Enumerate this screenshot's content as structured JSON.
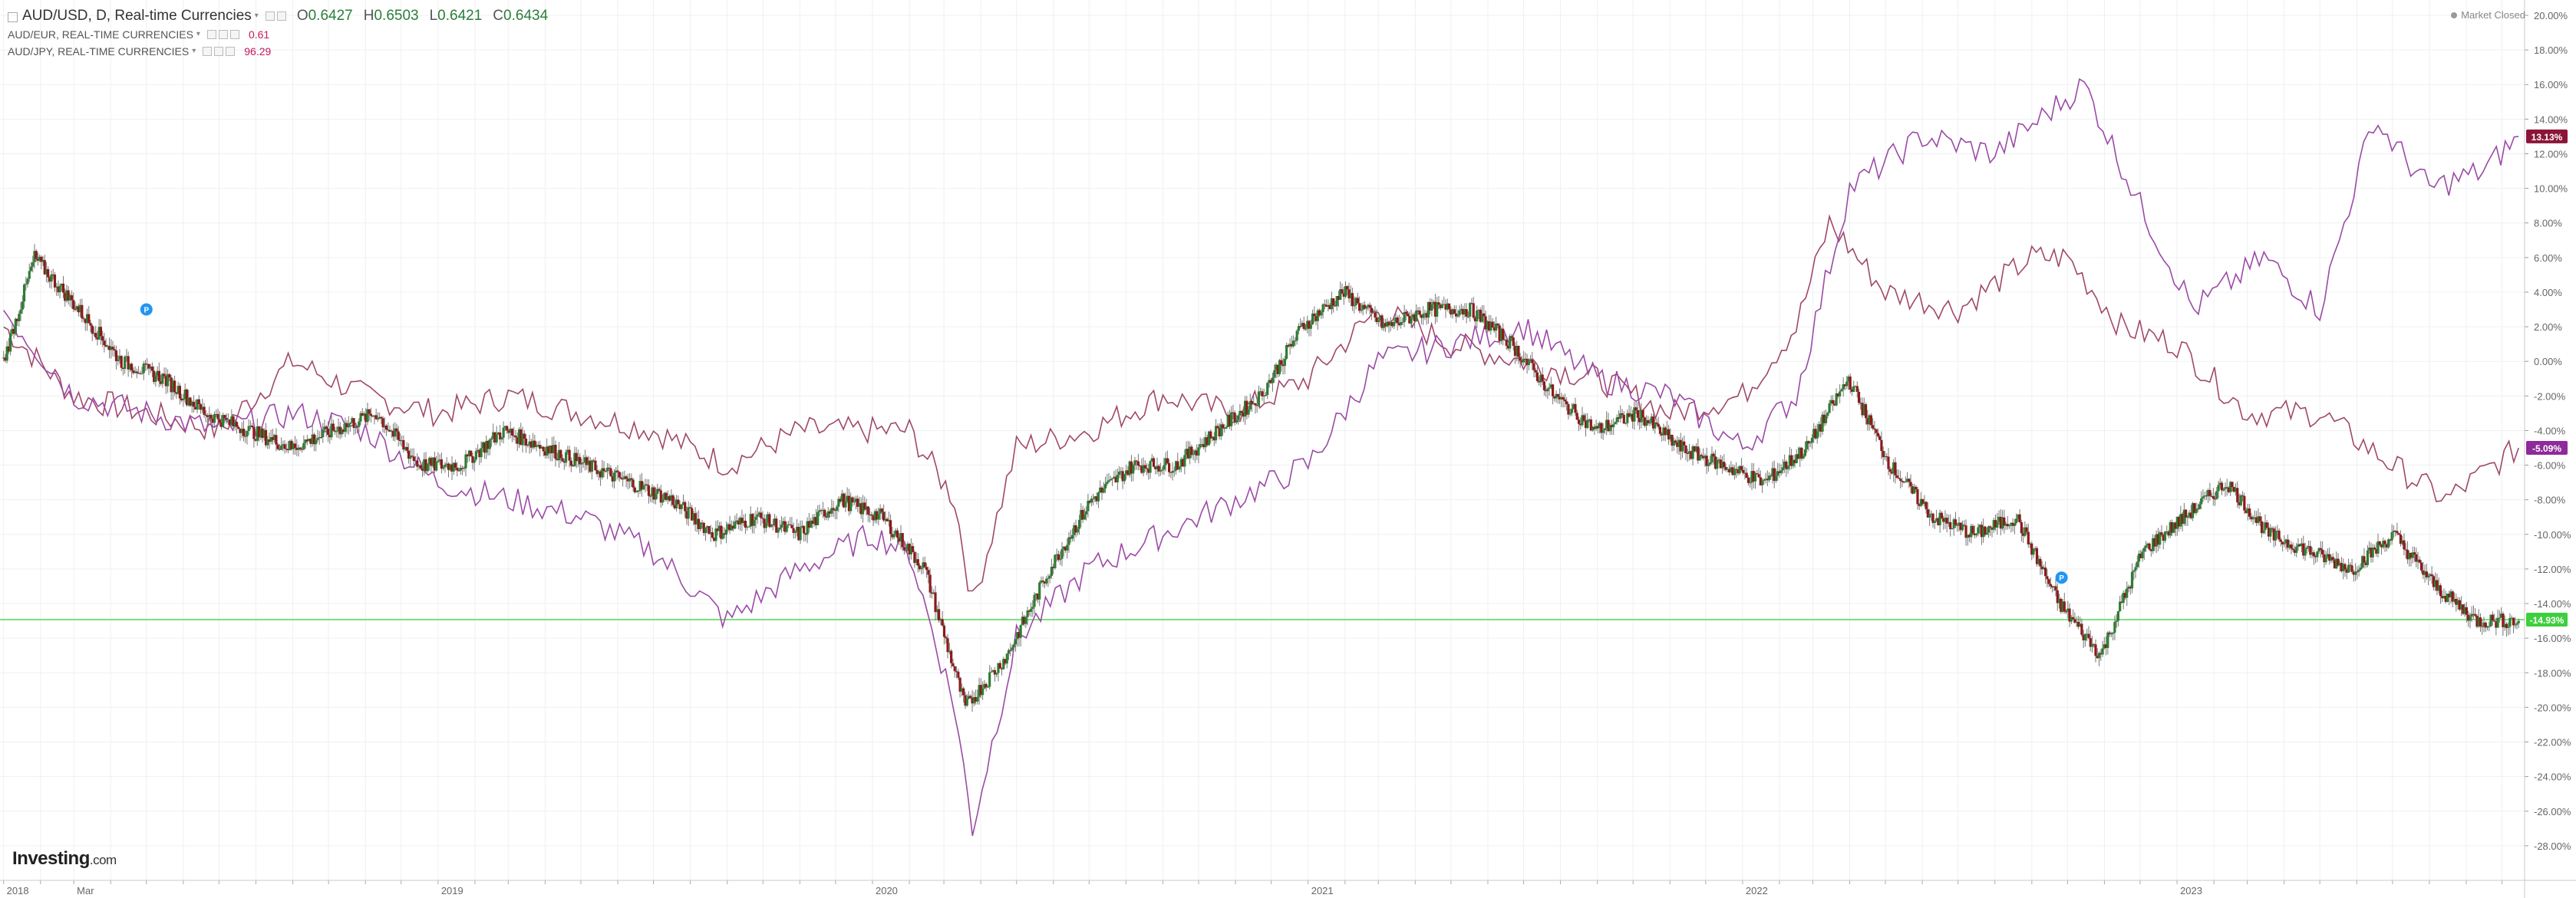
{
  "legend": {
    "main_symbol": "AUD/USD, D, Real-time Currencies",
    "ohlc": [
      {
        "label": "O",
        "value": "0.6427"
      },
      {
        "label": "H",
        "value": "0.6503"
      },
      {
        "label": "L",
        "value": "0.6421"
      },
      {
        "label": "C",
        "value": "0.6434"
      }
    ],
    "compare_series": [
      {
        "label": "AUD/EUR, REAL-TIME CURRENCIES",
        "value": "0.61",
        "color": "#c2185b"
      },
      {
        "label": "AUD/JPY, REAL-TIME CURRENCIES",
        "value": "96.29",
        "color": "#c2185b"
      }
    ]
  },
  "market_status": "Market Closed",
  "logo": {
    "brand": "Investing",
    "suffix": ".com"
  },
  "colors": {
    "audusd_up": "#2e7d32",
    "audusd_down": "#8b1a1a",
    "audeur_line": "#a0486a",
    "audjpy_line": "#9b4aa6",
    "reference_line": "#7ee07e",
    "grid": "#eef0f3",
    "axis_text": "#666666"
  },
  "chart_data": {
    "type": "line",
    "title": "AUD/USD, D, Real-time Currencies",
    "xlabel": "",
    "ylabel": "",
    "y_unit": "%",
    "ylim": [
      -30,
      20
    ],
    "x_tick_labels": [
      "2018",
      "Mar",
      "2019",
      "2020",
      "2021",
      "2022",
      "2023"
    ],
    "x_tick_dates": [
      "2018-01-01",
      "2018-03-01",
      "2019-01-01",
      "2020-01-01",
      "2021-01-01",
      "2022-01-01",
      "2023-01-01"
    ],
    "x_range": [
      "2017-12-29",
      "2023-10-20"
    ],
    "y_ticks": [
      20,
      18,
      16,
      14,
      12,
      10,
      8,
      6,
      4,
      2,
      0,
      -2,
      -4,
      -6,
      -8,
      -10,
      -12,
      -14,
      -16,
      -18,
      -20,
      -22,
      -24,
      -26,
      -28
    ],
    "y_tick_labels": [
      "20.00%",
      "18.00%",
      "16.00%",
      "14.00%",
      "12.00%",
      "10.00%",
      "8.00%",
      "6.00%",
      "4.00%",
      "2.00%",
      "0.00%",
      "-2.00%",
      "-4.00%",
      "-6.00%",
      "-8.00%",
      "-10.00%",
      "-12.00%",
      "-14.00%",
      "-16.00%",
      "-18.00%",
      "-20.00%",
      "-22.00%",
      "-24.00%",
      "-26.00%",
      "-28.00%"
    ],
    "grid": true,
    "reference_line": -14.93,
    "series": [
      {
        "name": "AUD/USD",
        "style": "candlestick",
        "last_label": "-14.93%",
        "x": [
          "2018-01-01",
          "2018-01-27",
          "2018-03-05",
          "2018-04-10",
          "2018-05-16",
          "2018-06-20",
          "2018-07-26",
          "2018-08-31",
          "2018-10-05",
          "2018-11-10",
          "2018-12-16",
          "2019-01-20",
          "2019-02-25",
          "2019-04-01",
          "2019-05-06",
          "2019-06-11",
          "2019-07-16",
          "2019-08-21",
          "2019-09-25",
          "2019-10-31",
          "2019-12-05",
          "2020-01-09",
          "2020-02-14",
          "2020-03-19",
          "2020-04-23",
          "2020-05-29",
          "2020-07-03",
          "2020-08-07",
          "2020-09-12",
          "2020-10-17",
          "2020-11-22",
          "2020-12-27",
          "2021-01-31",
          "2021-03-07",
          "2021-04-12",
          "2021-05-17",
          "2021-06-21",
          "2021-07-27",
          "2021-08-31",
          "2021-10-05",
          "2021-11-10",
          "2021-12-15",
          "2022-01-19",
          "2022-02-24",
          "2022-03-31",
          "2022-05-05",
          "2022-06-10",
          "2022-07-15",
          "2022-08-19",
          "2022-09-24",
          "2022-10-29",
          "2022-12-03",
          "2023-01-07",
          "2023-02-12",
          "2023-03-19",
          "2023-04-23",
          "2023-05-28",
          "2023-07-02",
          "2023-08-06",
          "2023-09-10",
          "2023-10-15"
        ],
        "y": [
          0,
          6,
          3,
          0,
          -1,
          -3,
          -4,
          -5,
          -4,
          -3,
          -6,
          -6,
          -4,
          -5,
          -6,
          -7,
          -8,
          -10,
          -9,
          -10,
          -8,
          -9,
          -12,
          -20,
          -17,
          -12,
          -8,
          -6,
          -6,
          -4,
          -2,
          2,
          4,
          2,
          3,
          3,
          1,
          -2,
          -4,
          -3,
          -5,
          -6,
          -7,
          -5,
          -1,
          -6,
          -9,
          -10,
          -9,
          -14,
          -17,
          -11,
          -9,
          -7,
          -10,
          -11,
          -12,
          -10,
          -13,
          -15,
          -15
        ]
      },
      {
        "name": "AUD/EUR",
        "style": "line",
        "last_label": "-5.09%",
        "x": [
          "2018-01-01",
          "2018-03-01",
          "2018-05-01",
          "2018-07-01",
          "2018-09-01",
          "2018-11-01",
          "2019-01-01",
          "2019-03-01",
          "2019-05-01",
          "2019-07-01",
          "2019-09-01",
          "2019-11-01",
          "2020-01-01",
          "2020-02-01",
          "2020-03-10",
          "2020-03-25",
          "2020-05-01",
          "2020-07-01",
          "2020-09-01",
          "2020-11-01",
          "2021-01-01",
          "2021-03-01",
          "2021-05-01",
          "2021-07-01",
          "2021-09-01",
          "2021-11-01",
          "2022-01-01",
          "2022-02-15",
          "2022-03-15",
          "2022-05-01",
          "2022-07-01",
          "2022-09-01",
          "2022-10-01",
          "2022-11-15",
          "2023-01-01",
          "2023-03-01",
          "2023-05-01",
          "2023-07-01",
          "2023-08-15",
          "2023-10-15"
        ],
        "y": [
          2,
          -2,
          -3,
          -4,
          0,
          -2,
          -3,
          -2,
          -3,
          -4,
          -6,
          -4,
          -4,
          -4,
          -8,
          -14,
          -5,
          -4,
          -2,
          -3,
          -1,
          3,
          1,
          0,
          -1,
          -3,
          -2,
          2,
          8,
          4,
          3,
          6,
          6,
          2,
          1,
          -3,
          -3,
          -6,
          -8,
          -5
        ]
      },
      {
        "name": "AUD/JPY",
        "style": "line",
        "last_label": "13.13%",
        "x": [
          "2018-01-01",
          "2018-03-01",
          "2018-05-01",
          "2018-07-01",
          "2018-09-01",
          "2018-11-01",
          "2019-01-01",
          "2019-03-01",
          "2019-05-01",
          "2019-07-01",
          "2019-09-01",
          "2019-11-01",
          "2020-01-01",
          "2020-02-01",
          "2020-03-10",
          "2020-03-25",
          "2020-05-01",
          "2020-07-01",
          "2020-09-01",
          "2020-11-01",
          "2021-01-01",
          "2021-03-01",
          "2021-05-01",
          "2021-07-01",
          "2021-09-01",
          "2021-11-01",
          "2022-01-01",
          "2022-02-15",
          "2022-04-01",
          "2022-06-01",
          "2022-08-01",
          "2022-10-15",
          "2022-12-01",
          "2023-01-15",
          "2023-03-15",
          "2023-05-01",
          "2023-06-15",
          "2023-08-01",
          "2023-09-15",
          "2023-10-15"
        ],
        "y": [
          3,
          -2,
          -3,
          -4,
          -3,
          -4,
          -7,
          -8,
          -9,
          -11,
          -15,
          -12,
          -10,
          -11,
          -20,
          -27,
          -16,
          -12,
          -10,
          -8,
          -6,
          0,
          1,
          2,
          -1,
          -2,
          -5,
          -2,
          10,
          13,
          12,
          16,
          9,
          3,
          6,
          3,
          14,
          10,
          11,
          13
        ]
      }
    ]
  }
}
